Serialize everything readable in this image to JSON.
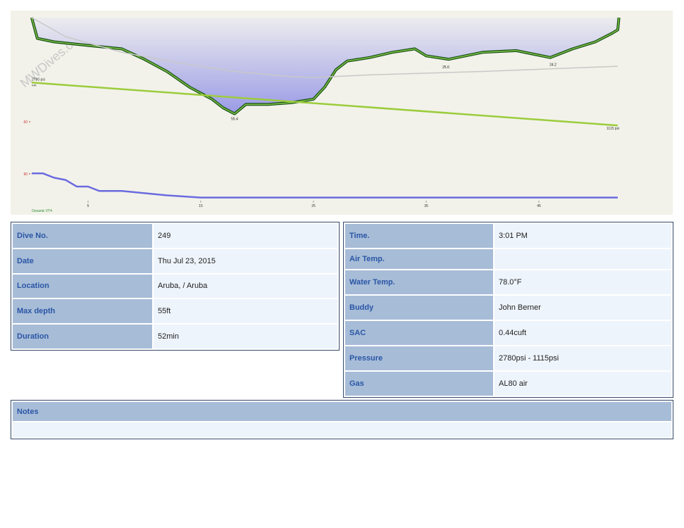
{
  "watermark": "MWDives.com",
  "chart_data": {
    "type": "dive-profile",
    "xlim": [
      0,
      52.6
    ],
    "xticks": [
      5,
      15,
      25,
      35,
      45
    ],
    "ylim": [
      0,
      111.5
    ],
    "yticks": [
      60,
      90
    ],
    "y2lim": [
      0,
      5000
    ],
    "y3lim": [
      76,
      84
    ],
    "computer": "Oceanic VT4",
    "gas_label": "AIR",
    "series": [
      {
        "color": "#2e8b22",
        "x": [
          0,
          0.5,
          2,
          5,
          8,
          10,
          12,
          14,
          16,
          17,
          18,
          19,
          21,
          23,
          25,
          26,
          27,
          28,
          30,
          32,
          34,
          35,
          37,
          40,
          43,
          46,
          48,
          50,
          51.5,
          52,
          52.1
        ],
        "values": [
          0,
          12,
          14,
          16,
          18,
          24,
          31,
          40,
          47,
          52,
          55.4,
          50,
          50,
          49,
          47,
          40,
          30,
          25,
          23,
          20,
          18,
          22,
          24,
          20,
          19,
          23,
          18,
          14,
          9,
          7,
          0
        ]
      },
      {
        "color": "#c8c8c8",
        "x": [
          0,
          3,
          8,
          13,
          18,
          23,
          25,
          30,
          40,
          52
        ],
        "values": [
          0,
          11,
          20,
          26,
          31,
          34,
          34.5,
          33,
          31,
          28
        ]
      },
      {
        "color": "#9ccc3c",
        "axis": "y2",
        "x": [
          0,
          52
        ],
        "values": [
          2780,
          1115
        ],
        "value_labels": [
          "2780 psi",
          "1115 psi"
        ]
      },
      {
        "color": "#6b6be0",
        "axis": "y3",
        "x": [
          0,
          1,
          2,
          3,
          4,
          5,
          6,
          8,
          10,
          12,
          15,
          20,
          25,
          30,
          35,
          40,
          45,
          50,
          52
        ],
        "values": [
          83,
          83,
          82,
          81.5,
          80,
          80,
          79,
          79,
          78.5,
          78,
          77.5,
          77.5,
          77.5,
          77.5,
          77.5,
          77.5,
          77.5,
          77.5,
          77.5
        ]
      }
    ],
    "annotations": [
      {
        "x": 18,
        "y": 55.4,
        "label": "55.4"
      },
      {
        "x": 36.75,
        "y": 25.6,
        "label": "25.6"
      },
      {
        "x": 46.25,
        "y": 24.2,
        "label": "24.2"
      }
    ]
  },
  "left_table": {
    "rows": [
      [
        "Dive No.",
        "249"
      ],
      [
        "Date",
        "Thu Jul 23, 2015"
      ],
      [
        "Location",
        "Aruba, / Aruba"
      ],
      [
        "Max depth",
        "55ft"
      ],
      [
        "Duration",
        "52min"
      ]
    ]
  },
  "right_table": {
    "rows": [
      [
        "Time.",
        "3:01 PM"
      ],
      [
        "Air Temp.",
        ""
      ],
      [
        "Water Temp.",
        "78.0°F"
      ],
      [
        "Buddy",
        "John Berner"
      ],
      [
        "SAC",
        "0.44cuft"
      ],
      [
        "Pressure",
        "2780psi - 1115psi"
      ],
      [
        "Gas",
        "AL80 air"
      ]
    ]
  },
  "notes": {
    "title": "Notes"
  }
}
